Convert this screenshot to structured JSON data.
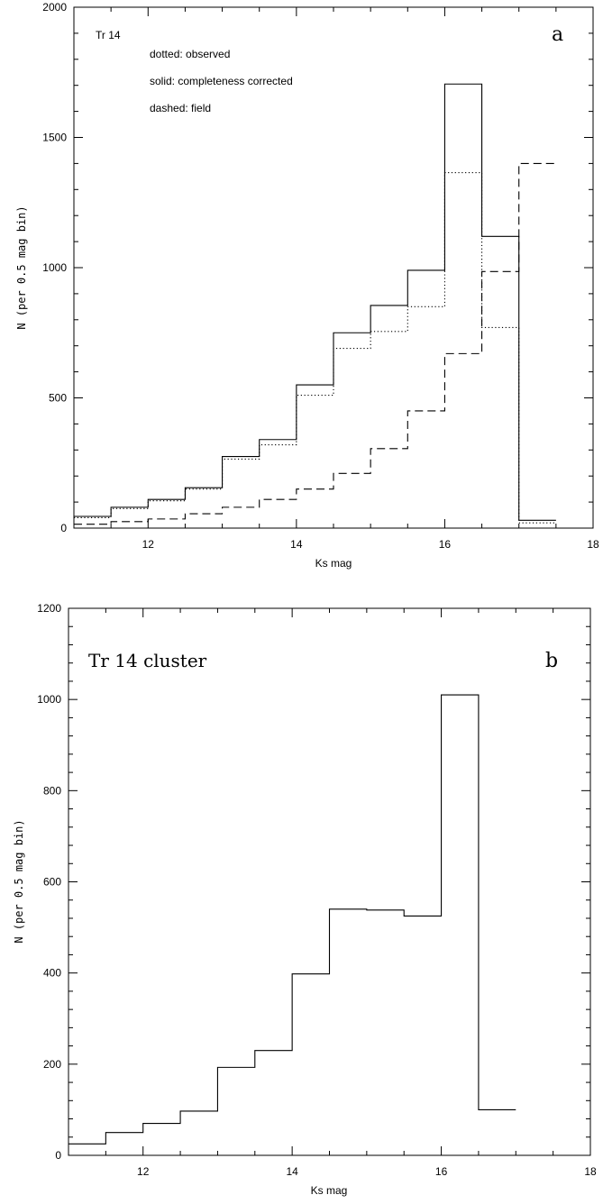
{
  "chart_data": [
    {
      "type": "line",
      "panel_letter": "a",
      "inset_title": "Tr 14",
      "legend": [
        "dotted: observed",
        "solid: completeness corrected",
        "dashed: field"
      ],
      "xlabel": "Ks mag",
      "ylabel": "N (per 0.5 mag bin)",
      "xlim": [
        11,
        18
      ],
      "ylim": [
        0,
        2000
      ],
      "xticks": [
        "12",
        "14",
        "16",
        "18"
      ],
      "yticks": [
        "0",
        "500",
        "1000",
        "1500",
        "2000"
      ],
      "bin_edges": [
        11.0,
        11.5,
        12.0,
        12.5,
        13.0,
        13.5,
        14.0,
        14.5,
        15.0,
        15.5,
        16.0,
        16.5,
        17.0,
        17.5
      ],
      "series": [
        {
          "name": "observed",
          "style": "dotted",
          "values": [
            40,
            75,
            105,
            150,
            265,
            320,
            510,
            690,
            755,
            850,
            1365,
            770,
            20
          ]
        },
        {
          "name": "completeness corrected",
          "style": "solid",
          "values": [
            45,
            80,
            110,
            155,
            275,
            340,
            550,
            750,
            855,
            990,
            1705,
            1120,
            30
          ]
        },
        {
          "name": "field",
          "style": "dashed",
          "values": [
            15,
            25,
            35,
            55,
            80,
            110,
            150,
            210,
            305,
            450,
            670,
            985,
            1400
          ]
        }
      ]
    },
    {
      "type": "line",
      "panel_letter": "b",
      "inset_title": "Tr 14 cluster",
      "xlabel": "Ks mag",
      "ylabel": "N (per 0.5 mag bin)",
      "xlim": [
        11,
        18
      ],
      "ylim": [
        0,
        1200
      ],
      "xticks": [
        "12",
        "14",
        "16",
        "18"
      ],
      "yticks": [
        "0",
        "200",
        "400",
        "600",
        "800",
        "1000",
        "1200"
      ],
      "bin_edges": [
        11.0,
        11.5,
        12.0,
        12.5,
        13.0,
        13.5,
        14.0,
        14.5,
        15.0,
        15.5,
        16.0,
        16.5,
        17.0
      ],
      "series": [
        {
          "style": "solid",
          "values": [
            25,
            50,
            70,
            97,
            193,
            230,
            398,
            540,
            538,
            525,
            1010,
            100
          ]
        }
      ]
    }
  ]
}
